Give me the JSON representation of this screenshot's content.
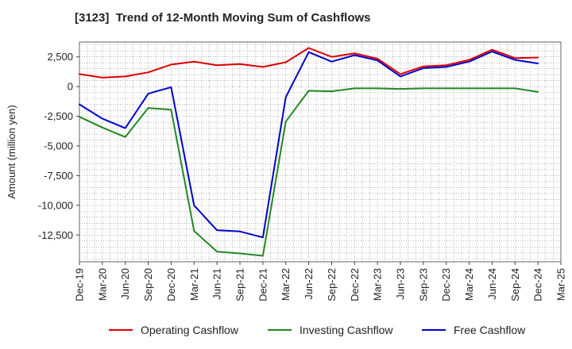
{
  "chart_data": {
    "type": "line",
    "title": "[3123]  Trend of 12-Month Moving Sum of Cashflows",
    "xlabel": "",
    "ylabel": "Amount (million yen)",
    "x_ticks": [
      "Dec-19",
      "Mar-20",
      "Jun-20",
      "Sep-20",
      "Dec-20",
      "Mar-21",
      "Jun-21",
      "Sep-21",
      "Dec-21",
      "Mar-22",
      "Jun-22",
      "Sep-22",
      "Dec-22",
      "Mar-23",
      "Jun-23",
      "Sep-23",
      "Dec-23",
      "Mar-24",
      "Jun-24",
      "Sep-24",
      "Dec-24",
      "Mar-25"
    ],
    "x": [
      "Dec-19",
      "Mar-20",
      "Jun-20",
      "Sep-20",
      "Dec-20",
      "Mar-21",
      "Jun-21",
      "Sep-21",
      "Dec-21",
      "Mar-22",
      "Jun-22",
      "Sep-22",
      "Dec-22",
      "Mar-23",
      "Jun-23",
      "Sep-23",
      "Dec-23",
      "Mar-24",
      "Jun-24",
      "Sep-24",
      "Dec-24"
    ],
    "ylim": [
      -14750,
      3750
    ],
    "y_ticks": [
      2500,
      0,
      -2500,
      -5000,
      -7500,
      -10000,
      -12500
    ],
    "y_tick_labels": [
      "2,500",
      "0",
      "-2,500",
      "-5,000",
      "-7,500",
      "-10,000",
      "-12,500"
    ],
    "grid": true,
    "legend_position": "bottom",
    "series": [
      {
        "name": "Operating Cashflow",
        "color": "#dd0000",
        "values": [
          1050,
          750,
          850,
          1200,
          1850,
          2100,
          1800,
          1900,
          1650,
          2050,
          3250,
          2500,
          2800,
          2350,
          1050,
          1700,
          1800,
          2250,
          3100,
          2400,
          2450
        ]
      },
      {
        "name": "Investing Cashflow",
        "color": "#228822",
        "values": [
          -2550,
          -3450,
          -4250,
          -1800,
          -1950,
          -12150,
          -13900,
          -14050,
          -14250,
          -2950,
          -350,
          -400,
          -150,
          -150,
          -200,
          -150,
          -150,
          -150,
          -150,
          -150,
          -450
        ]
      },
      {
        "name": "Free Cashflow",
        "color": "#0000cc",
        "values": [
          -1500,
          -2700,
          -3500,
          -600,
          -50,
          -10000,
          -12100,
          -12200,
          -12700,
          -900,
          2900,
          2100,
          2650,
          2200,
          850,
          1550,
          1650,
          2100,
          2950,
          2250,
          1950
        ]
      }
    ]
  }
}
